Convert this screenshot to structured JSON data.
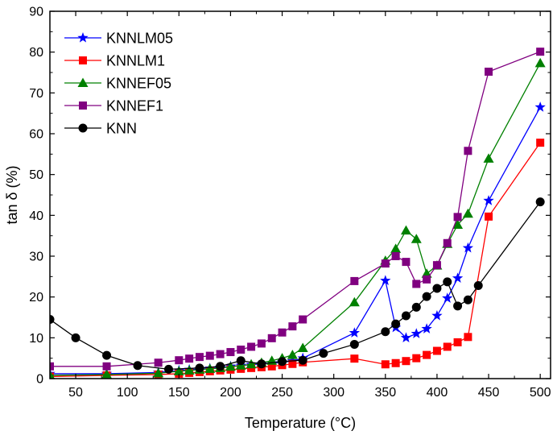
{
  "chart_data": {
    "type": "line",
    "xlabel": "Temperature (°C)",
    "ylabel": "tan δ (%)",
    "xlim": [
      25,
      510
    ],
    "ylim": [
      0,
      90
    ],
    "x_ticks": [
      50,
      100,
      150,
      200,
      250,
      300,
      350,
      400,
      450,
      500
    ],
    "y_ticks": [
      0,
      10,
      20,
      30,
      40,
      50,
      60,
      70,
      80,
      90
    ],
    "grid": false,
    "legend_position": "top-left",
    "series": [
      {
        "name": "KNNLM05",
        "color": "#0000ff",
        "marker": "star",
        "x": [
          25,
          80,
          130,
          150,
          160,
          170,
          180,
          190,
          200,
          210,
          220,
          230,
          240,
          250,
          260,
          270,
          320,
          350,
          360,
          370,
          380,
          390,
          400,
          410,
          420,
          430,
          450,
          500
        ],
        "y": [
          1.2,
          1.2,
          1.5,
          2.0,
          2.2,
          2.3,
          2.5,
          2.7,
          3.0,
          3.2,
          3.4,
          3.6,
          3.8,
          4.0,
          4.3,
          5.0,
          11.2,
          24.0,
          12.5,
          10.0,
          11.0,
          12.2,
          15.4,
          19.7,
          24.6,
          32.0,
          43.6,
          66.5
        ]
      },
      {
        "name": "KNNLM1",
        "color": "#ff0000",
        "marker": "square",
        "x": [
          25,
          80,
          130,
          150,
          160,
          170,
          180,
          190,
          200,
          210,
          220,
          230,
          240,
          250,
          260,
          270,
          320,
          350,
          360,
          370,
          380,
          390,
          400,
          410,
          420,
          430,
          450,
          500
        ],
        "y": [
          0.5,
          0.8,
          1.0,
          1.2,
          1.4,
          1.6,
          1.8,
          2.0,
          2.2,
          2.4,
          2.6,
          2.8,
          3.0,
          3.3,
          3.6,
          4.0,
          4.9,
          3.5,
          3.8,
          4.3,
          5.0,
          5.8,
          6.8,
          7.8,
          8.9,
          10.2,
          39.7,
          57.8
        ]
      },
      {
        "name": "KNNEF05",
        "color": "#008000",
        "marker": "triangle",
        "x": [
          25,
          80,
          130,
          150,
          160,
          170,
          180,
          190,
          200,
          210,
          220,
          230,
          240,
          250,
          260,
          270,
          320,
          350,
          360,
          370,
          380,
          390,
          400,
          410,
          420,
          430,
          450,
          500
        ],
        "y": [
          0.8,
          1.0,
          1.3,
          1.8,
          2.0,
          2.2,
          2.4,
          2.6,
          2.9,
          3.2,
          3.5,
          3.9,
          4.4,
          5.0,
          5.8,
          7.5,
          18.7,
          28.9,
          31.8,
          36.3,
          34.2,
          25.7,
          27.7,
          33.0,
          37.7,
          40.4,
          53.9,
          77.3
        ]
      },
      {
        "name": "KNNEF1",
        "color": "#800080",
        "marker": "square",
        "x": [
          25,
          80,
          130,
          150,
          160,
          170,
          180,
          190,
          200,
          210,
          220,
          230,
          240,
          250,
          260,
          270,
          320,
          350,
          360,
          370,
          380,
          390,
          400,
          410,
          420,
          430,
          450,
          500
        ],
        "y": [
          3.0,
          3.0,
          3.9,
          4.5,
          4.9,
          5.3,
          5.6,
          6.0,
          6.5,
          7.1,
          7.8,
          8.6,
          9.9,
          11.3,
          12.8,
          14.5,
          23.9,
          28.2,
          30.0,
          28.6,
          23.2,
          24.3,
          27.8,
          33.2,
          39.6,
          55.8,
          75.2,
          80.1
        ]
      },
      {
        "name": "KNN",
        "color": "#000000",
        "marker": "circle",
        "x": [
          25,
          50,
          80,
          110,
          140,
          170,
          190,
          210,
          230,
          250,
          270,
          290,
          320,
          350,
          360,
          370,
          380,
          390,
          400,
          410,
          420,
          430,
          440,
          500
        ],
        "y": [
          14.5,
          10.0,
          5.7,
          3.2,
          2.3,
          2.6,
          3.0,
          4.4,
          3.6,
          4.2,
          4.5,
          6.2,
          8.4,
          11.5,
          13.4,
          15.4,
          17.5,
          20.1,
          22.1,
          23.7,
          17.8,
          19.3,
          22.8,
          43.3
        ]
      }
    ]
  }
}
